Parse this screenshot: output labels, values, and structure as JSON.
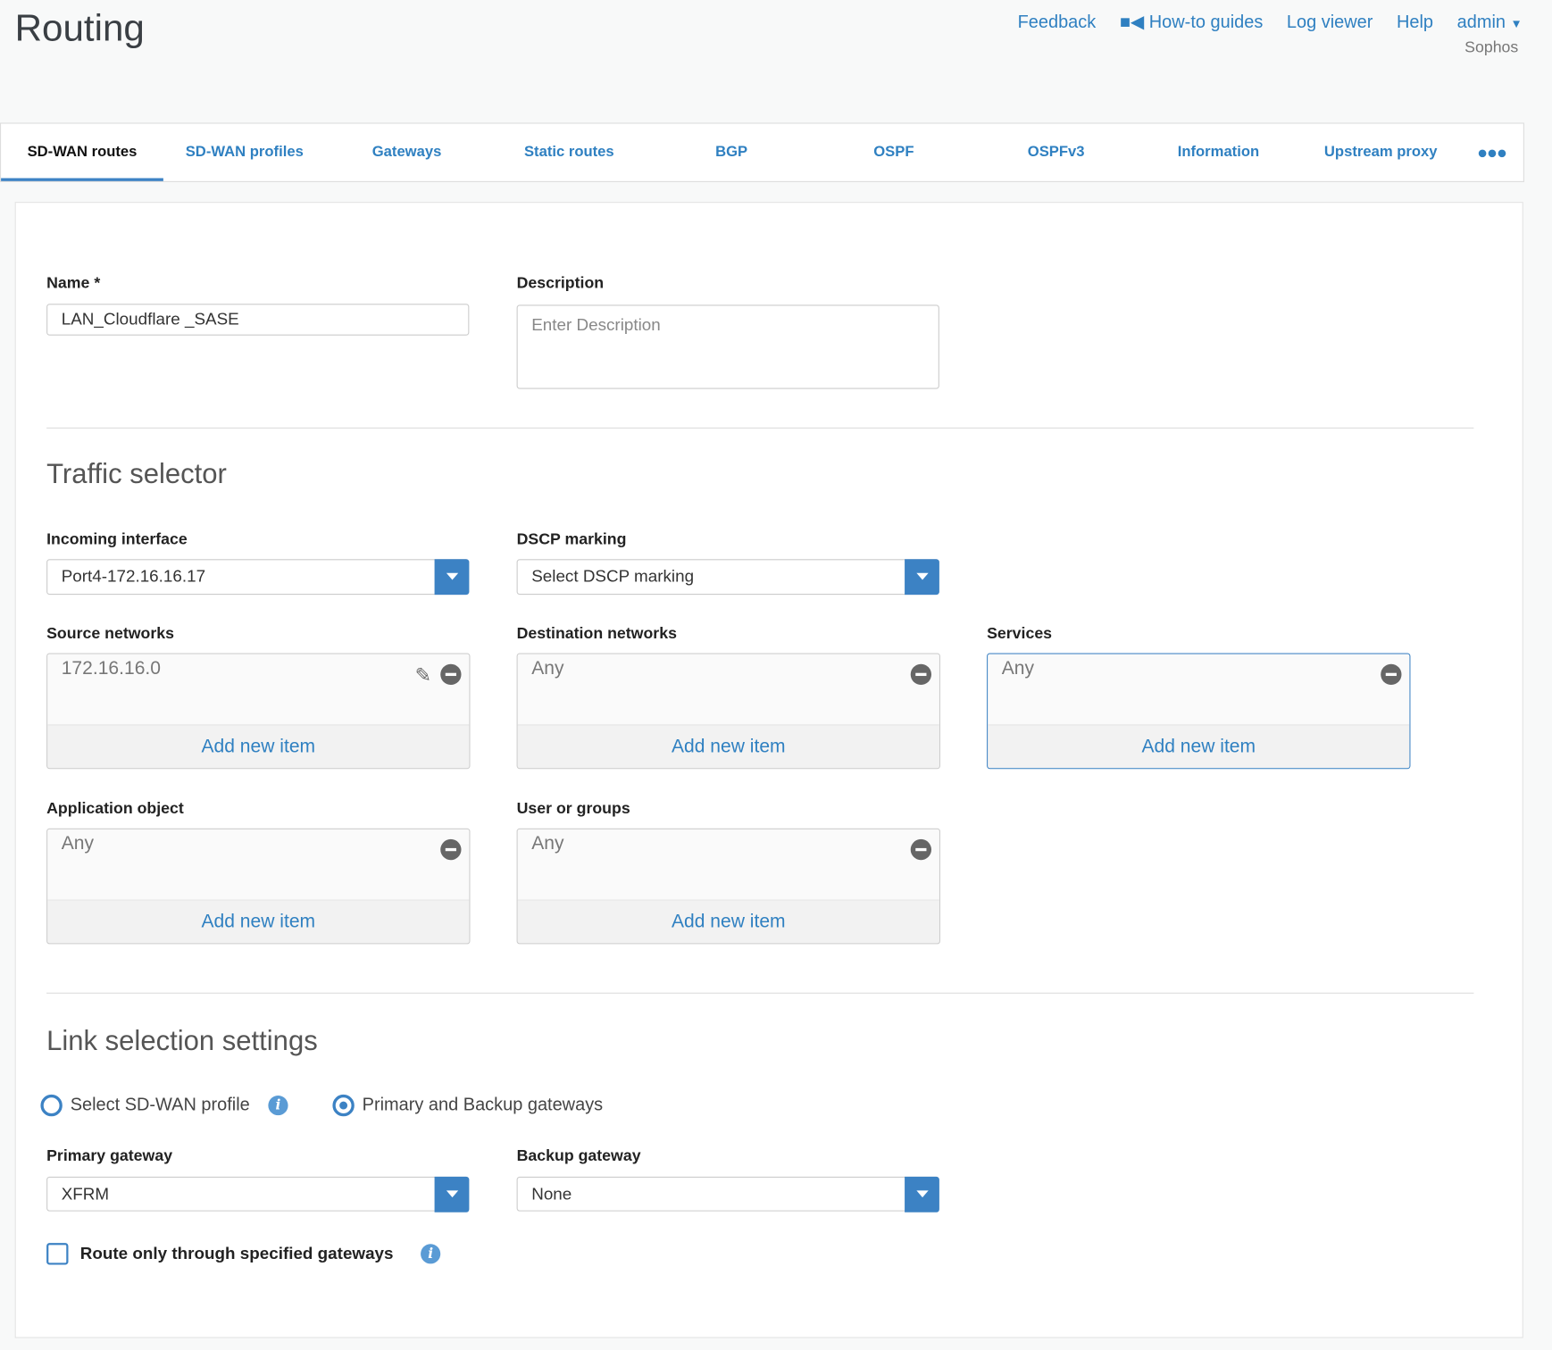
{
  "header": {
    "title": "Routing",
    "links": [
      "Feedback",
      "How-to guides",
      "Log viewer",
      "Help",
      "admin"
    ],
    "org": "Sophos"
  },
  "tabs": [
    "SD-WAN routes",
    "SD-WAN profiles",
    "Gateways",
    "Static routes",
    "BGP",
    "OSPF",
    "OSPFv3",
    "Information",
    "Upstream proxy"
  ],
  "form": {
    "name_label": "Name *",
    "name_value": "LAN_Cloudflare _SASE",
    "desc_label": "Description",
    "desc_placeholder": "Enter Description",
    "traffic_title": "Traffic selector",
    "incoming_label": "Incoming interface",
    "incoming_value": "Port4-172.16.16.17",
    "dscp_label": "DSCP marking",
    "dscp_value": "Select DSCP marking",
    "source_label": "Source networks",
    "source_item": "172.16.16.0",
    "dest_label": "Destination networks",
    "dest_item": "Any",
    "services_label": "Services",
    "services_item": "Any",
    "app_label": "Application object",
    "app_item": "Any",
    "users_label": "User or groups",
    "users_item": "Any",
    "add_new": "Add new item",
    "link_title": "Link selection settings",
    "radio_sdwan": "Select SD-WAN profile",
    "radio_gw": "Primary and Backup gateways",
    "radio_selected": "Primary and Backup gateways",
    "primary_label": "Primary gateway",
    "primary_value": "XFRM",
    "backup_label": "Backup gateway",
    "backup_value": "None",
    "route_only_label": "Route only through specified gateways",
    "route_only_checked": false
  },
  "colors": {
    "accent": "#3c82c4",
    "link": "#2f80c1"
  }
}
